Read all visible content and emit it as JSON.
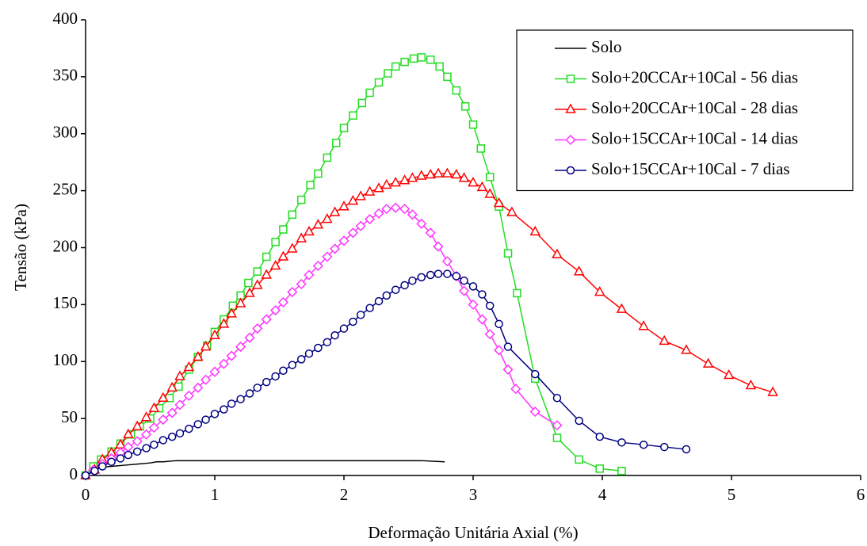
{
  "chart_data": {
    "type": "line",
    "xlabel": "Deformação Unitária Axial (%)",
    "ylabel": "Tensão (kPa)",
    "xlim": [
      0,
      6
    ],
    "xticks": [
      0,
      1,
      2,
      3,
      4,
      5,
      6
    ],
    "ylim": [
      0,
      400
    ],
    "yticks": [
      0,
      50,
      100,
      150,
      200,
      250,
      300,
      350,
      400
    ],
    "legend": "upper right",
    "series": [
      {
        "name": "Solo",
        "color": "#000000",
        "marker": "none",
        "x": [
          0,
          0.05,
          0.1,
          0.2,
          0.3,
          0.4,
          0.5,
          0.55,
          0.6,
          0.7,
          0.8,
          1.0,
          1.5,
          2.0,
          2.5,
          2.6,
          2.78
        ],
        "values": [
          0,
          5,
          7,
          8,
          9,
          10,
          11,
          12,
          12,
          13,
          13,
          13,
          13,
          13,
          13,
          13,
          12
        ]
      },
      {
        "name": "Solo+20CCAr+10Cal - 56 dias",
        "color": "#22dd22",
        "marker": "square",
        "x": [
          0,
          0.06,
          0.12,
          0.2,
          0.27,
          0.35,
          0.42,
          0.5,
          0.57,
          0.65,
          0.72,
          0.8,
          0.87,
          0.94,
          1.0,
          1.07,
          1.14,
          1.2,
          1.26,
          1.33,
          1.4,
          1.47,
          1.53,
          1.6,
          1.67,
          1.74,
          1.8,
          1.87,
          1.94,
          2.0,
          2.07,
          2.14,
          2.2,
          2.27,
          2.34,
          2.4,
          2.47,
          2.54,
          2.6,
          2.67,
          2.74,
          2.8,
          2.87,
          2.94,
          3.0,
          3.06,
          3.13,
          3.2,
          3.27,
          3.34,
          3.48,
          3.65,
          3.82,
          3.98,
          4.15
        ],
        "values": [
          0,
          8,
          14,
          21,
          28,
          36,
          43,
          50,
          59,
          68,
          78,
          93,
          104,
          114,
          126,
          137,
          149,
          158,
          169,
          179,
          192,
          205,
          216,
          229,
          242,
          255,
          265,
          279,
          292,
          305,
          316,
          327,
          336,
          345,
          353,
          359,
          363,
          366,
          367,
          365,
          359,
          350,
          338,
          324,
          308,
          287,
          262,
          236,
          195,
          160,
          85,
          33,
          14,
          6,
          4
        ]
      },
      {
        "name": "Solo+20CCAr+10Cal - 28 dias",
        "color": "#ff0000",
        "marker": "triangle",
        "x": [
          0,
          0.07,
          0.13,
          0.2,
          0.27,
          0.33,
          0.4,
          0.47,
          0.53,
          0.6,
          0.67,
          0.73,
          0.8,
          0.87,
          0.93,
          1.0,
          1.07,
          1.13,
          1.2,
          1.27,
          1.33,
          1.4,
          1.47,
          1.53,
          1.6,
          1.67,
          1.73,
          1.8,
          1.87,
          1.93,
          2.0,
          2.07,
          2.13,
          2.2,
          2.27,
          2.33,
          2.4,
          2.47,
          2.53,
          2.6,
          2.67,
          2.73,
          2.8,
          2.87,
          2.93,
          3.0,
          3.07,
          3.13,
          3.2,
          3.3,
          3.48,
          3.65,
          3.82,
          3.98,
          4.15,
          4.32,
          4.48,
          4.65,
          4.82,
          4.98,
          5.15,
          5.32
        ],
        "values": [
          0,
          5,
          14,
          20,
          27,
          36,
          43,
          51,
          59,
          68,
          77,
          87,
          95,
          104,
          113,
          123,
          133,
          142,
          151,
          160,
          167,
          176,
          184,
          192,
          199,
          208,
          214,
          220,
          225,
          231,
          236,
          241,
          245,
          249,
          252,
          255,
          257,
          259,
          261,
          263,
          264,
          265,
          265,
          264,
          261,
          257,
          253,
          247,
          239,
          231,
          214,
          194,
          179,
          161,
          146,
          131,
          118,
          110,
          98,
          88,
          79,
          73
        ]
      },
      {
        "name": "Solo+15CCAr+10Cal - 14 dias",
        "color": "#ff33ff",
        "marker": "diamond",
        "x": [
          0,
          0.06,
          0.13,
          0.2,
          0.27,
          0.33,
          0.4,
          0.47,
          0.53,
          0.6,
          0.67,
          0.73,
          0.8,
          0.87,
          0.93,
          1.0,
          1.07,
          1.13,
          1.2,
          1.27,
          1.33,
          1.4,
          1.47,
          1.53,
          1.6,
          1.67,
          1.73,
          1.8,
          1.87,
          1.93,
          2.0,
          2.07,
          2.13,
          2.2,
          2.27,
          2.33,
          2.4,
          2.47,
          2.53,
          2.6,
          2.67,
          2.73,
          2.8,
          2.87,
          2.93,
          3.0,
          3.07,
          3.13,
          3.2,
          3.27,
          3.33,
          3.48,
          3.65
        ],
        "values": [
          0,
          5,
          10,
          15,
          20,
          25,
          30,
          36,
          42,
          49,
          55,
          62,
          70,
          77,
          84,
          91,
          98,
          105,
          113,
          121,
          129,
          137,
          145,
          152,
          161,
          168,
          176,
          184,
          192,
          199,
          206,
          213,
          219,
          225,
          230,
          234,
          235,
          234,
          229,
          221,
          213,
          201,
          188,
          175,
          162,
          150,
          137,
          124,
          110,
          93,
          76,
          56,
          44
        ]
      },
      {
        "name": "Solo+15CCAr+10Cal - 7 dias",
        "color": "#000080",
        "marker": "circle",
        "x": [
          0,
          0.07,
          0.13,
          0.2,
          0.27,
          0.33,
          0.4,
          0.47,
          0.53,
          0.6,
          0.67,
          0.73,
          0.8,
          0.87,
          0.93,
          1.0,
          1.07,
          1.13,
          1.2,
          1.27,
          1.33,
          1.4,
          1.47,
          1.53,
          1.6,
          1.67,
          1.73,
          1.8,
          1.87,
          1.93,
          2.0,
          2.07,
          2.13,
          2.2,
          2.27,
          2.33,
          2.4,
          2.47,
          2.53,
          2.6,
          2.67,
          2.73,
          2.8,
          2.87,
          2.93,
          3.0,
          3.07,
          3.13,
          3.2,
          3.27,
          3.48,
          3.65,
          3.82,
          3.98,
          4.15,
          4.32,
          4.48,
          4.65
        ],
        "values": [
          0,
          4,
          8,
          12,
          15,
          18,
          21,
          24,
          27,
          31,
          34,
          37,
          41,
          45,
          49,
          54,
          58,
          63,
          67,
          72,
          77,
          82,
          87,
          92,
          97,
          102,
          107,
          112,
          117,
          123,
          129,
          135,
          141,
          147,
          153,
          158,
          163,
          167,
          171,
          174,
          176,
          177,
          177,
          175,
          171,
          166,
          159,
          149,
          133,
          113,
          89,
          68,
          48,
          34,
          29,
          27,
          25,
          23
        ]
      }
    ]
  }
}
